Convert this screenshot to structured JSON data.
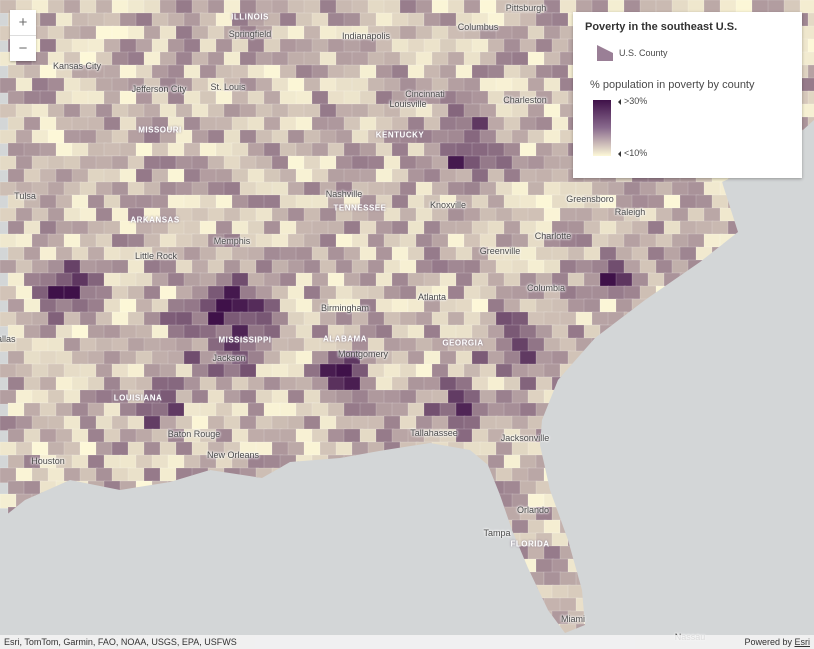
{
  "map": {
    "colors": {
      "low": "#fdf8d8",
      "high": "#3f1149",
      "water": "#d3d6d7"
    },
    "states": [
      {
        "name": "Illinois"
      },
      {
        "name": "Missouri"
      },
      {
        "name": "Kentucky"
      },
      {
        "name": "Tennessee"
      },
      {
        "name": "Arkansas"
      },
      {
        "name": "Mississippi"
      },
      {
        "name": "Alabama"
      },
      {
        "name": "Georgia"
      },
      {
        "name": "Louisiana"
      },
      {
        "name": "Florida"
      }
    ],
    "cities": [
      {
        "name": "Springfield"
      },
      {
        "name": "Indianapolis"
      },
      {
        "name": "Columbus"
      },
      {
        "name": "Pittsburgh"
      },
      {
        "name": "Kansas City"
      },
      {
        "name": "Jefferson City"
      },
      {
        "name": "St. Louis"
      },
      {
        "name": "Cincinnati"
      },
      {
        "name": "Louisville"
      },
      {
        "name": "Charleston"
      },
      {
        "name": "Tulsa"
      },
      {
        "name": "Nashville"
      },
      {
        "name": "Knoxville"
      },
      {
        "name": "Greensboro"
      },
      {
        "name": "Raleigh"
      },
      {
        "name": "Memphis"
      },
      {
        "name": "Little Rock"
      },
      {
        "name": "Charlotte"
      },
      {
        "name": "Greenville"
      },
      {
        "name": "Birmingham"
      },
      {
        "name": "Atlanta"
      },
      {
        "name": "Columbia"
      },
      {
        "name": "Jackson"
      },
      {
        "name": "Montgomery"
      },
      {
        "name": "Baton Rouge"
      },
      {
        "name": "New Orleans"
      },
      {
        "name": "Tallahassee"
      },
      {
        "name": "Jacksonville"
      },
      {
        "name": "Houston"
      },
      {
        "name": "Orlando"
      },
      {
        "name": "Tampa"
      },
      {
        "name": "Miami"
      },
      {
        "name": "Nassau"
      },
      {
        "name": "Dallas"
      }
    ]
  },
  "zoom": {
    "in": "+",
    "out": "−"
  },
  "legend": {
    "title": "Poverty in the southeast U.S.",
    "layer": "U.S. County",
    "field": "% population in poverty by county",
    "high": ">30%",
    "low": "<10%",
    "swatch_color": "#9a7f96"
  },
  "attribution": {
    "sources": "Esri, TomTom, Garmin, FAO, NOAA, USGS, EPA, USFWS",
    "powered": "Powered by ",
    "esri": "Esri"
  }
}
